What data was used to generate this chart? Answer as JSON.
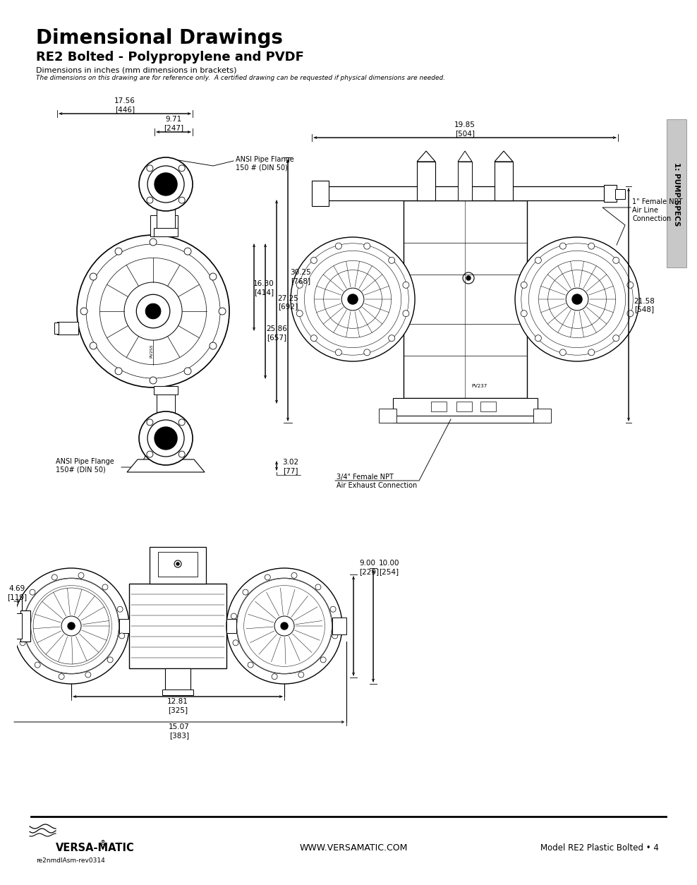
{
  "title": "Dimensional Drawings",
  "subtitle": "RE2 Bolted - Polypropylene and PVDF",
  "dim_note": "Dimensions in inches (mm dimensions in brackets)",
  "ref_note": "The dimensions on this drawing are for reference only.  A certified drawing can be requested if physical dimensions are needed.",
  "bg_color": "#ffffff",
  "tab_text": "1: PUMP SPECS",
  "footer_left": "re2nmdlAsm-rev0314",
  "footer_center": "WWW.VERSAMATIC.COM",
  "footer_right": "Model RE2 Plastic Bolted • 4",
  "dims_top": {
    "d1756": "17.56\n[446]",
    "d971": "9.71\n[247]",
    "d1985": "19.85\n[504]",
    "d3025": "30.25\n[768]",
    "d2725": "27.25\n[692]",
    "d2586": "25.86\n[657]",
    "d1630": "16.30\n[414]",
    "d302": "3.02\n[77]",
    "d2158": "21.58\n[548]"
  },
  "dims_bot": {
    "d469": "4.69\n[119]",
    "d900": "9.00",
    "d900m": "[229]",
    "d1000": "10.00",
    "d1000m": "[254]",
    "d1281": "12.81\n[325]",
    "d1507": "15.07\n[383]"
  },
  "labels": {
    "ansi_top": "ANSI Pipe Flange\n150 # (DIN 50)",
    "ansi_bot": "ANSI Pipe Flange\n150# (DIN 50)",
    "air_line": "1\" Female NPT\nAir Line\nConnection",
    "exhaust": "3/4\" Female NPT\nAir Exhaust Connection",
    "pv237": "PV237"
  }
}
